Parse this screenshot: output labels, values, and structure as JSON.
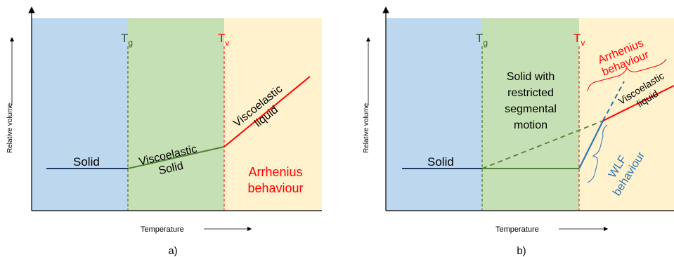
{
  "colors": {
    "solid_bg": "#bdd7ee",
    "viscoelastic_bg": "#c5e0b4",
    "liquid_bg": "#fff2cc",
    "solid_line": "#1f3864",
    "viscoelastic_line": "#548235",
    "liquid_line": "#ff0000",
    "wlf_line": "#2e75b6",
    "tg_color": "#375623",
    "tv_color": "#ff0000"
  },
  "panel_a": {
    "caption": "a)",
    "ylabel": "Relative volume",
    "xlabel": "Temperature",
    "tg": "T",
    "tg_sub": "g",
    "tv": "T",
    "tv_sub": "v",
    "solid": "Solid",
    "viscoelastic_solid_line1": "Viscoelastic",
    "viscoelastic_solid_line2": "Solid",
    "viscoelastic_liquid_line1": "Viscoelastic",
    "viscoelastic_liquid_line2": "liquid",
    "arrhenius_line1": "Arrhenius",
    "arrhenius_line2": "behaviour"
  },
  "panel_b": {
    "caption": "b)",
    "ylabel": "Relative volume",
    "xlabel": "Temperature",
    "tg": "T",
    "tg_sub": "g",
    "tv": "T",
    "tv_sub": "v",
    "solid": "Solid",
    "restricted_line1": "Solid with",
    "restricted_line2": "restricted",
    "restricted_line3": "segmental",
    "restricted_line4": "motion",
    "arrhenius_line1": "Arrhenius",
    "arrhenius_line2": "behaviour",
    "viscoelastic_liquid_line1": "Viscoelastic",
    "viscoelastic_liquid_line2": "liquid",
    "wlf_line1": "WLF",
    "wlf_line2": "behaviour"
  }
}
